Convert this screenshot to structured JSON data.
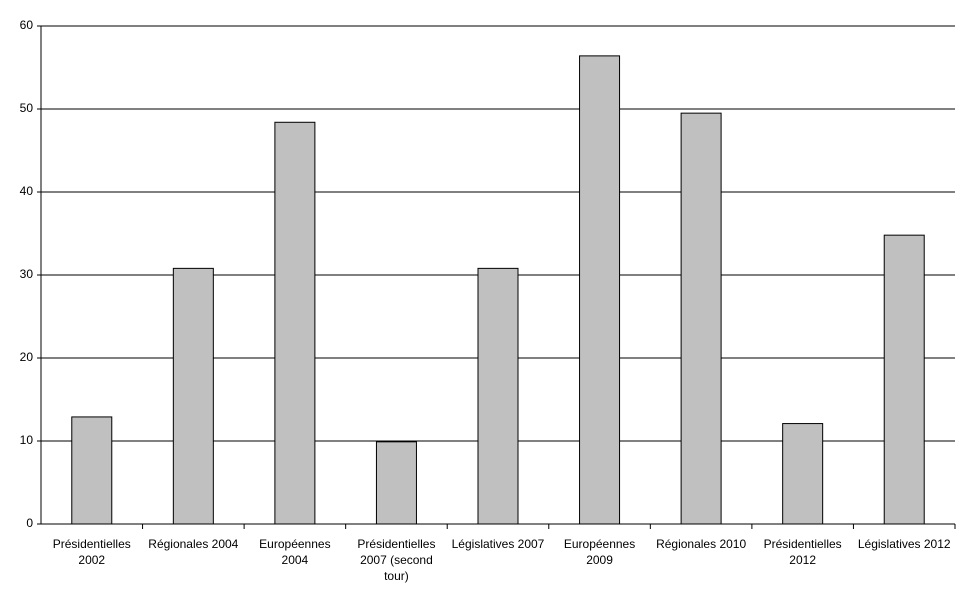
{
  "chart_data": {
    "type": "bar",
    "categories": [
      "Présidentielles 2002",
      "Régionales 2004",
      "Européennes 2004",
      "Présidentielles 2007 (second tour)",
      "Législatives 2007",
      "Européennes 2009",
      "Régionales 2010",
      "Présidentielles 2012",
      "Législatives 2012"
    ],
    "values": [
      12.9,
      30.8,
      48.4,
      9.9,
      30.8,
      56.4,
      49.5,
      12.1,
      34.8
    ],
    "color": "#c0c0c0",
    "ylim": [
      0,
      60
    ],
    "yticks": [
      0,
      10,
      20,
      30,
      40,
      50,
      60
    ],
    "grid": true
  }
}
